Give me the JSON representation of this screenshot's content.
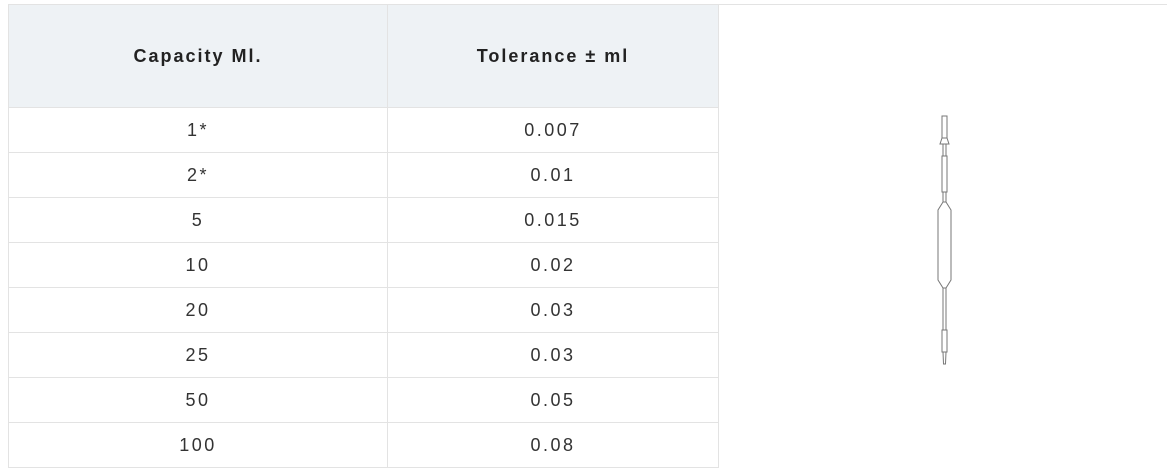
{
  "table": {
    "header": [
      "Capacity Ml.",
      "Tolerance ± ml"
    ],
    "rows": [
      [
        "1*",
        "0.007"
      ],
      [
        "2*",
        "0.01"
      ],
      [
        "5",
        "0.015"
      ],
      [
        "10",
        "0.02"
      ],
      [
        "20",
        "0.03"
      ],
      [
        "25",
        "0.03"
      ],
      [
        "50",
        "0.05"
      ],
      [
        "100",
        "0.08"
      ]
    ]
  }
}
